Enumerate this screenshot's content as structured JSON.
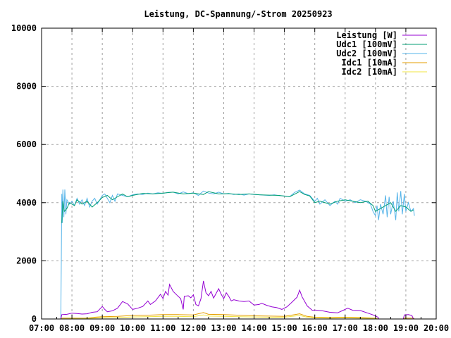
{
  "chart_data": {
    "type": "line",
    "title": "Leistung, DC-Spannung/-Strom 20250923",
    "xlim": [
      "07:00",
      "20:00"
    ],
    "ylim": [
      0,
      10000
    ],
    "xticks": [
      "07:00",
      "08:00",
      "09:00",
      "10:00",
      "11:00",
      "12:00",
      "13:00",
      "14:00",
      "15:00",
      "16:00",
      "17:00",
      "18:00",
      "19:00",
      "20:00"
    ],
    "yticks": [
      "0",
      "2000",
      "4000",
      "6000",
      "8000",
      "10000"
    ],
    "grid": true,
    "legend_position": "top-right",
    "series": [
      {
        "name": "Leistung [W]",
        "color": "#9400d3",
        "points": [
          [
            "07:38",
            0
          ],
          [
            "07:40",
            150
          ],
          [
            "07:50",
            160
          ],
          [
            "08:00",
            200
          ],
          [
            "08:10",
            190
          ],
          [
            "08:20",
            170
          ],
          [
            "08:30",
            180
          ],
          [
            "08:40",
            230
          ],
          [
            "08:50",
            250
          ],
          [
            "09:00",
            430
          ],
          [
            "09:05",
            330
          ],
          [
            "09:10",
            250
          ],
          [
            "09:20",
            280
          ],
          [
            "09:30",
            370
          ],
          [
            "09:40",
            600
          ],
          [
            "09:50",
            520
          ],
          [
            "10:00",
            330
          ],
          [
            "10:10",
            370
          ],
          [
            "10:20",
            430
          ],
          [
            "10:30",
            620
          ],
          [
            "10:35",
            500
          ],
          [
            "10:45",
            620
          ],
          [
            "10:55",
            850
          ],
          [
            "11:00",
            700
          ],
          [
            "11:05",
            950
          ],
          [
            "11:10",
            820
          ],
          [
            "11:13",
            1190
          ],
          [
            "11:20",
            950
          ],
          [
            "11:30",
            780
          ],
          [
            "11:35",
            700
          ],
          [
            "11:40",
            330
          ],
          [
            "11:42",
            780
          ],
          [
            "11:50",
            800
          ],
          [
            "11:55",
            730
          ],
          [
            "12:00",
            830
          ],
          [
            "12:05",
            500
          ],
          [
            "12:10",
            450
          ],
          [
            "12:15",
            700
          ],
          [
            "12:20",
            1310
          ],
          [
            "12:25",
            900
          ],
          [
            "12:30",
            800
          ],
          [
            "12:35",
            950
          ],
          [
            "12:40",
            720
          ],
          [
            "12:50",
            1040
          ],
          [
            "12:55",
            850
          ],
          [
            "13:00",
            700
          ],
          [
            "13:05",
            900
          ],
          [
            "13:10",
            780
          ],
          [
            "13:15",
            620
          ],
          [
            "13:20",
            660
          ],
          [
            "13:30",
            620
          ],
          [
            "13:40",
            600
          ],
          [
            "13:50",
            620
          ],
          [
            "14:00",
            480
          ],
          [
            "14:10",
            500
          ],
          [
            "14:15",
            540
          ],
          [
            "14:25",
            470
          ],
          [
            "14:35",
            420
          ],
          [
            "14:45",
            390
          ],
          [
            "14:55",
            330
          ],
          [
            "15:05",
            420
          ],
          [
            "15:15",
            580
          ],
          [
            "15:25",
            750
          ],
          [
            "15:30",
            990
          ],
          [
            "15:35",
            760
          ],
          [
            "15:45",
            450
          ],
          [
            "15:55",
            300
          ],
          [
            "16:00",
            310
          ],
          [
            "16:15",
            280
          ],
          [
            "16:30",
            230
          ],
          [
            "16:45",
            210
          ],
          [
            "16:55",
            290
          ],
          [
            "17:05",
            370
          ],
          [
            "17:15",
            300
          ],
          [
            "17:30",
            290
          ],
          [
            "17:45",
            200
          ],
          [
            "17:55",
            140
          ],
          [
            "18:05",
            60
          ],
          [
            "18:07",
            0
          ],
          [
            "18:55",
            0
          ],
          [
            "18:57",
            140
          ],
          [
            "19:05",
            150
          ],
          [
            "19:12",
            120
          ],
          [
            "19:15",
            0
          ]
        ]
      },
      {
        "name": "Udc1 [100mV]",
        "color": "#009e73",
        "points": [
          [
            "07:40",
            3300
          ],
          [
            "07:42",
            4050
          ],
          [
            "07:45",
            3700
          ],
          [
            "07:50",
            3800
          ],
          [
            "07:55",
            4000
          ],
          [
            "08:05",
            3900
          ],
          [
            "08:10",
            4100
          ],
          [
            "08:20",
            3950
          ],
          [
            "08:30",
            4050
          ],
          [
            "08:40",
            3850
          ],
          [
            "08:50",
            4000
          ],
          [
            "09:00",
            4180
          ],
          [
            "09:10",
            4250
          ],
          [
            "09:20",
            4100
          ],
          [
            "09:30",
            4200
          ],
          [
            "09:40",
            4300
          ],
          [
            "09:50",
            4200
          ],
          [
            "10:00",
            4250
          ],
          [
            "10:20",
            4320
          ],
          [
            "10:40",
            4300
          ],
          [
            "11:00",
            4330
          ],
          [
            "11:20",
            4360
          ],
          [
            "11:40",
            4300
          ],
          [
            "12:00",
            4330
          ],
          [
            "12:20",
            4280
          ],
          [
            "12:30",
            4380
          ],
          [
            "12:50",
            4300
          ],
          [
            "13:10",
            4310
          ],
          [
            "13:30",
            4280
          ],
          [
            "13:50",
            4300
          ],
          [
            "14:10",
            4270
          ],
          [
            "14:30",
            4260
          ],
          [
            "14:50",
            4250
          ],
          [
            "15:10",
            4200
          ],
          [
            "15:30",
            4380
          ],
          [
            "15:40",
            4280
          ],
          [
            "15:50",
            4230
          ],
          [
            "16:00",
            4000
          ],
          [
            "16:10",
            4050
          ],
          [
            "16:30",
            3950
          ],
          [
            "16:45",
            4050
          ],
          [
            "17:00",
            4100
          ],
          [
            "17:15",
            4050
          ],
          [
            "17:30",
            4000
          ],
          [
            "17:45",
            4050
          ],
          [
            "17:55",
            3900
          ],
          [
            "18:00",
            3700
          ],
          [
            "18:10",
            3800
          ],
          [
            "18:20",
            3900
          ],
          [
            "18:30",
            4000
          ],
          [
            "18:40",
            3700
          ],
          [
            "18:50",
            3900
          ],
          [
            "19:00",
            3850
          ],
          [
            "19:10",
            3700
          ],
          [
            "19:15",
            3750
          ]
        ]
      },
      {
        "name": "Udc2 [100mV]",
        "color": "#56b4e9",
        "points": [
          [
            "07:38",
            0
          ],
          [
            "07:39",
            2000
          ],
          [
            "07:40",
            4300
          ],
          [
            "07:41",
            3300
          ],
          [
            "07:42",
            4450
          ],
          [
            "07:44",
            3500
          ],
          [
            "07:46",
            4450
          ],
          [
            "07:48",
            3600
          ],
          [
            "07:50",
            4100
          ],
          [
            "07:55",
            3950
          ],
          [
            "08:00",
            4050
          ],
          [
            "08:05",
            3900
          ],
          [
            "08:10",
            4150
          ],
          [
            "08:15",
            3950
          ],
          [
            "08:20",
            4100
          ],
          [
            "08:25",
            3900
          ],
          [
            "08:30",
            4150
          ],
          [
            "08:35",
            3850
          ],
          [
            "08:40",
            4050
          ],
          [
            "08:45",
            4150
          ],
          [
            "08:50",
            3950
          ],
          [
            "09:00",
            4250
          ],
          [
            "09:05",
            4300
          ],
          [
            "09:10",
            4150
          ],
          [
            "09:15",
            4000
          ],
          [
            "09:20",
            4250
          ],
          [
            "09:25",
            4050
          ],
          [
            "09:30",
            4300
          ],
          [
            "09:40",
            4250
          ],
          [
            "09:50",
            4200
          ],
          [
            "10:00",
            4270
          ],
          [
            "10:10",
            4300
          ],
          [
            "10:20",
            4280
          ],
          [
            "10:30",
            4330
          ],
          [
            "10:40",
            4300
          ],
          [
            "10:50",
            4340
          ],
          [
            "11:00",
            4320
          ],
          [
            "11:10",
            4350
          ],
          [
            "11:20",
            4360
          ],
          [
            "11:30",
            4300
          ],
          [
            "11:40",
            4370
          ],
          [
            "11:50",
            4310
          ],
          [
            "12:00",
            4340
          ],
          [
            "12:10",
            4250
          ],
          [
            "12:20",
            4400
          ],
          [
            "12:30",
            4330
          ],
          [
            "12:40",
            4300
          ],
          [
            "12:50",
            4360
          ],
          [
            "13:00",
            4300
          ],
          [
            "13:10",
            4320
          ],
          [
            "13:20",
            4280
          ],
          [
            "13:30",
            4300
          ],
          [
            "13:40",
            4260
          ],
          [
            "13:50",
            4300
          ],
          [
            "14:00",
            4280
          ],
          [
            "14:10",
            4270
          ],
          [
            "14:20",
            4260
          ],
          [
            "14:30",
            4250
          ],
          [
            "14:40",
            4270
          ],
          [
            "14:50",
            4240
          ],
          [
            "15:00",
            4230
          ],
          [
            "15:10",
            4200
          ],
          [
            "15:20",
            4350
          ],
          [
            "15:30",
            4430
          ],
          [
            "15:40",
            4300
          ],
          [
            "15:50",
            4250
          ],
          [
            "16:00",
            4050
          ],
          [
            "16:05",
            4150
          ],
          [
            "16:10",
            3950
          ],
          [
            "16:20",
            4100
          ],
          [
            "16:30",
            3900
          ],
          [
            "16:40",
            4050
          ],
          [
            "16:45",
            3950
          ],
          [
            "16:50",
            4150
          ],
          [
            "17:00",
            4050
          ],
          [
            "17:10",
            4100
          ],
          [
            "17:20",
            4000
          ],
          [
            "17:30",
            4100
          ],
          [
            "17:40",
            4050
          ],
          [
            "17:50",
            3950
          ],
          [
            "17:55",
            3700
          ],
          [
            "18:00",
            3550
          ],
          [
            "18:03",
            3900
          ],
          [
            "18:06",
            3400
          ],
          [
            "18:10",
            3950
          ],
          [
            "18:15",
            3600
          ],
          [
            "18:20",
            4250
          ],
          [
            "18:23",
            3500
          ],
          [
            "18:27",
            4200
          ],
          [
            "18:30",
            3600
          ],
          [
            "18:35",
            4050
          ],
          [
            "18:40",
            3400
          ],
          [
            "18:43",
            4350
          ],
          [
            "18:46",
            3700
          ],
          [
            "18:50",
            4400
          ],
          [
            "18:53",
            3600
          ],
          [
            "18:57",
            4300
          ],
          [
            "19:00",
            3700
          ],
          [
            "19:05",
            4000
          ],
          [
            "19:10",
            3700
          ],
          [
            "19:15",
            3800
          ],
          [
            "19:17",
            3550
          ]
        ]
      },
      {
        "name": "Idc1 [10mA]",
        "color": "#e69f00",
        "points": [
          [
            "07:38",
            0
          ],
          [
            "07:40",
            30
          ],
          [
            "08:30",
            30
          ],
          [
            "08:45",
            60
          ],
          [
            "09:00",
            80
          ],
          [
            "09:30",
            90
          ],
          [
            "10:00",
            120
          ],
          [
            "10:30",
            130
          ],
          [
            "11:00",
            150
          ],
          [
            "11:30",
            150
          ],
          [
            "12:00",
            140
          ],
          [
            "12:20",
            220
          ],
          [
            "12:30",
            160
          ],
          [
            "13:00",
            150
          ],
          [
            "13:30",
            130
          ],
          [
            "14:00",
            110
          ],
          [
            "14:30",
            100
          ],
          [
            "15:00",
            90
          ],
          [
            "15:30",
            180
          ],
          [
            "15:45",
            90
          ],
          [
            "16:00",
            60
          ],
          [
            "16:30",
            50
          ],
          [
            "17:00",
            60
          ],
          [
            "17:30",
            50
          ],
          [
            "18:00",
            30
          ],
          [
            "18:05",
            0
          ],
          [
            "18:55",
            0
          ],
          [
            "18:57",
            30
          ],
          [
            "19:15",
            30
          ],
          [
            "19:17",
            0
          ]
        ]
      },
      {
        "name": "Idc2 [10mA]",
        "color": "#f0e442",
        "points": [
          [
            "07:38",
            0
          ],
          [
            "07:40",
            10
          ],
          [
            "08:30",
            20
          ],
          [
            "09:00",
            40
          ],
          [
            "09:30",
            50
          ],
          [
            "10:00",
            70
          ],
          [
            "10:30",
            80
          ],
          [
            "11:00",
            90
          ],
          [
            "11:30",
            90
          ],
          [
            "12:00",
            80
          ],
          [
            "12:20",
            140
          ],
          [
            "12:30",
            100
          ],
          [
            "13:00",
            90
          ],
          [
            "13:30",
            80
          ],
          [
            "14:00",
            70
          ],
          [
            "14:30",
            60
          ],
          [
            "15:00",
            60
          ],
          [
            "15:30",
            120
          ],
          [
            "15:45",
            60
          ],
          [
            "16:00",
            40
          ],
          [
            "16:30",
            30
          ],
          [
            "17:00",
            40
          ],
          [
            "17:30",
            30
          ],
          [
            "18:00",
            20
          ],
          [
            "18:05",
            0
          ]
        ]
      }
    ]
  }
}
